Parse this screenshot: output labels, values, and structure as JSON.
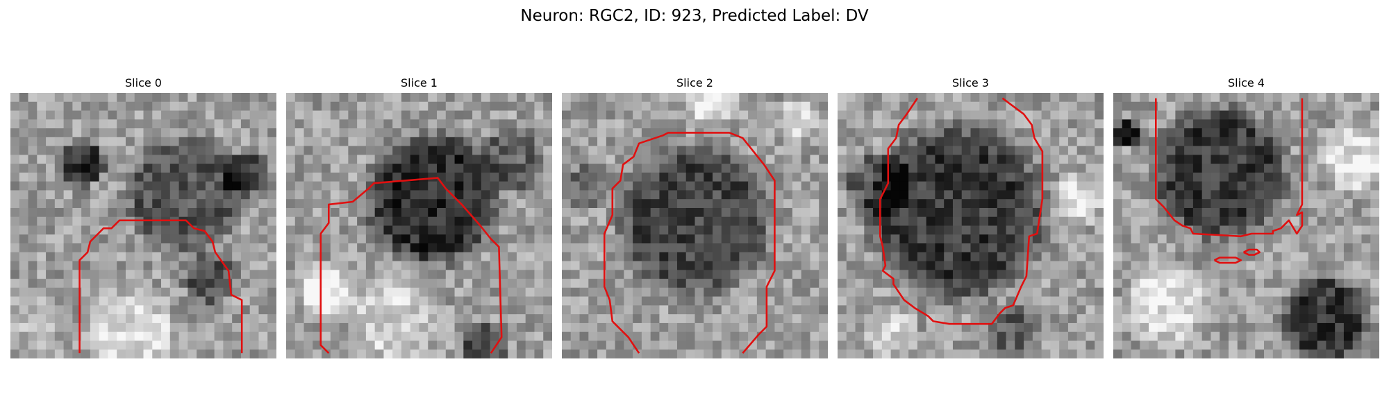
{
  "figure": {
    "title": "Neuron: RGC2, ID: 923, Predicted Label: DV"
  },
  "panels": [
    {
      "title": "Slice 0"
    },
    {
      "title": "Slice 1"
    },
    {
      "title": "Slice 2"
    },
    {
      "title": "Slice 3"
    },
    {
      "title": "Slice 4"
    }
  ],
  "colors": {
    "contour": "#e01010",
    "background": "#ffffff"
  }
}
